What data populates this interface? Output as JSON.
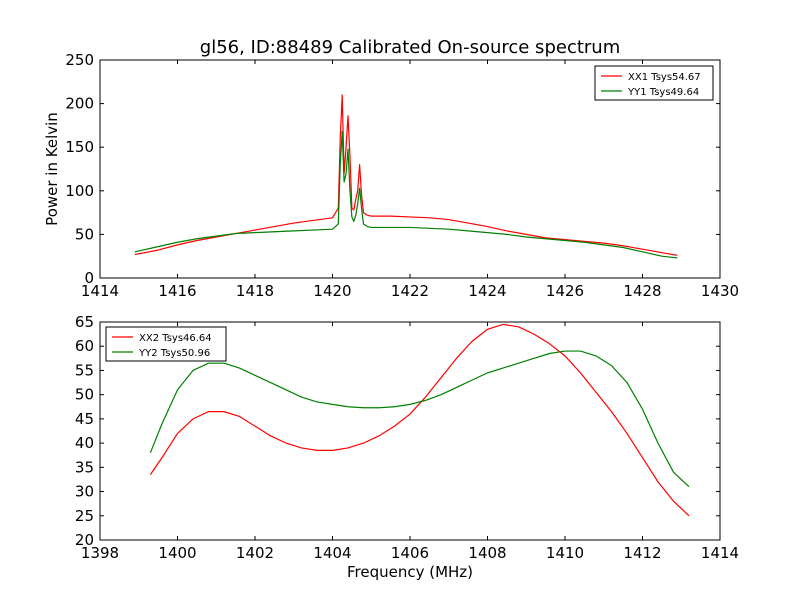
{
  "chart_data": [
    {
      "type": "line",
      "title": "gl56, ID:88489 Calibrated On-source spectrum",
      "xlabel": "",
      "ylabel": "Power in Kelvin",
      "xlim": [
        1414,
        1430
      ],
      "ylim": [
        0,
        250
      ],
      "xticks": [
        "1414",
        "1416",
        "1418",
        "1420",
        "1422",
        "1424",
        "1426",
        "1428",
        "1430"
      ],
      "yticks": [
        "0",
        "50",
        "100",
        "150",
        "200",
        "250"
      ],
      "legend_position": "top-right",
      "grid": false,
      "series": [
        {
          "name": "XX1 Tsys54.67",
          "color": "#ff0000",
          "x": [
            1414.9,
            1415.5,
            1416.0,
            1416.5,
            1417.0,
            1417.5,
            1418.0,
            1418.5,
            1419.0,
            1419.5,
            1420.0,
            1420.15,
            1420.2,
            1420.25,
            1420.3,
            1420.35,
            1420.4,
            1420.45,
            1420.5,
            1420.55,
            1420.6,
            1420.65,
            1420.7,
            1420.75,
            1420.8,
            1420.9,
            1421.0,
            1421.5,
            1422.0,
            1422.5,
            1423.0,
            1423.5,
            1424.0,
            1424.5,
            1425.0,
            1425.5,
            1426.0,
            1426.5,
            1427.0,
            1427.5,
            1428.0,
            1428.5,
            1428.9
          ],
          "y": [
            27,
            32,
            38,
            43,
            47,
            51,
            55,
            59,
            63,
            66,
            69,
            80,
            160,
            210,
            120,
            150,
            186,
            140,
            80,
            78,
            90,
            100,
            130,
            95,
            75,
            72,
            71,
            71,
            70,
            69,
            67,
            63,
            59,
            54,
            50,
            46,
            44,
            42,
            40,
            37,
            33,
            29,
            26
          ]
        },
        {
          "name": "YY1 Tsys49.64",
          "color": "#008000",
          "x": [
            1414.9,
            1415.5,
            1416.0,
            1416.5,
            1417.0,
            1417.5,
            1418.0,
            1418.5,
            1419.0,
            1419.5,
            1420.0,
            1420.15,
            1420.2,
            1420.25,
            1420.3,
            1420.35,
            1420.4,
            1420.45,
            1420.5,
            1420.55,
            1420.6,
            1420.65,
            1420.7,
            1420.75,
            1420.8,
            1420.9,
            1421.0,
            1421.5,
            1422.0,
            1422.5,
            1423.0,
            1423.5,
            1424.0,
            1424.5,
            1425.0,
            1425.5,
            1426.0,
            1426.5,
            1427.0,
            1427.5,
            1428.0,
            1428.5,
            1428.9
          ],
          "y": [
            30,
            36,
            41,
            45,
            48,
            51,
            52,
            53,
            54,
            55,
            56,
            62,
            130,
            168,
            110,
            120,
            148,
            100,
            70,
            65,
            72,
            85,
            103,
            80,
            62,
            59,
            58,
            58,
            58,
            57,
            56,
            54,
            52,
            50,
            47,
            45,
            43,
            41,
            38,
            35,
            30,
            25,
            23
          ]
        }
      ]
    },
    {
      "type": "line",
      "title": "",
      "xlabel": "Frequency (MHz)",
      "ylabel": "",
      "xlim": [
        1398,
        1414
      ],
      "ylim": [
        20,
        65
      ],
      "xticks": [
        "1398",
        "1400",
        "1402",
        "1404",
        "1406",
        "1408",
        "1410",
        "1412",
        "1414"
      ],
      "yticks": [
        "20",
        "25",
        "30",
        "35",
        "40",
        "45",
        "50",
        "55",
        "60",
        "65"
      ],
      "legend_position": "top-left",
      "grid": false,
      "series": [
        {
          "name": "XX2 Tsys46.64",
          "color": "#ff0000",
          "x": [
            1399.3,
            1399.6,
            1400.0,
            1400.4,
            1400.8,
            1401.2,
            1401.6,
            1402.0,
            1402.4,
            1402.8,
            1403.2,
            1403.6,
            1404.0,
            1404.4,
            1404.8,
            1405.2,
            1405.6,
            1406.0,
            1406.4,
            1406.8,
            1407.2,
            1407.6,
            1408.0,
            1408.4,
            1408.8,
            1409.2,
            1409.6,
            1410.0,
            1410.4,
            1410.8,
            1411.2,
            1411.6,
            1412.0,
            1412.4,
            1412.8,
            1413.2
          ],
          "y": [
            33.5,
            37,
            42,
            45,
            46.5,
            46.5,
            45.5,
            43.5,
            41.5,
            40,
            39,
            38.5,
            38.5,
            39,
            40,
            41.5,
            43.5,
            46,
            49.5,
            53.5,
            57.5,
            61,
            63.5,
            64.5,
            64,
            62.5,
            60.5,
            58,
            54.5,
            50.5,
            46.5,
            42,
            37,
            32,
            28,
            25
          ]
        },
        {
          "name": "YY2 Tsys50.96",
          "color": "#008000",
          "x": [
            1399.3,
            1399.6,
            1400.0,
            1400.4,
            1400.8,
            1401.2,
            1401.6,
            1402.0,
            1402.4,
            1402.8,
            1403.2,
            1403.6,
            1404.0,
            1404.4,
            1404.8,
            1405.2,
            1405.6,
            1406.0,
            1406.4,
            1406.8,
            1407.2,
            1407.6,
            1408.0,
            1408.4,
            1408.8,
            1409.2,
            1409.6,
            1410.0,
            1410.4,
            1410.8,
            1411.2,
            1411.6,
            1412.0,
            1412.4,
            1412.8,
            1413.2
          ],
          "y": [
            38,
            44,
            51,
            55,
            56.5,
            56.5,
            55.5,
            54,
            52.5,
            51,
            49.5,
            48.5,
            48,
            47.5,
            47.3,
            47.3,
            47.5,
            48,
            48.8,
            50,
            51.5,
            53,
            54.5,
            55.5,
            56.5,
            57.5,
            58.5,
            59,
            59,
            58,
            56,
            52.5,
            47,
            40,
            34,
            31
          ]
        }
      ]
    }
  ]
}
